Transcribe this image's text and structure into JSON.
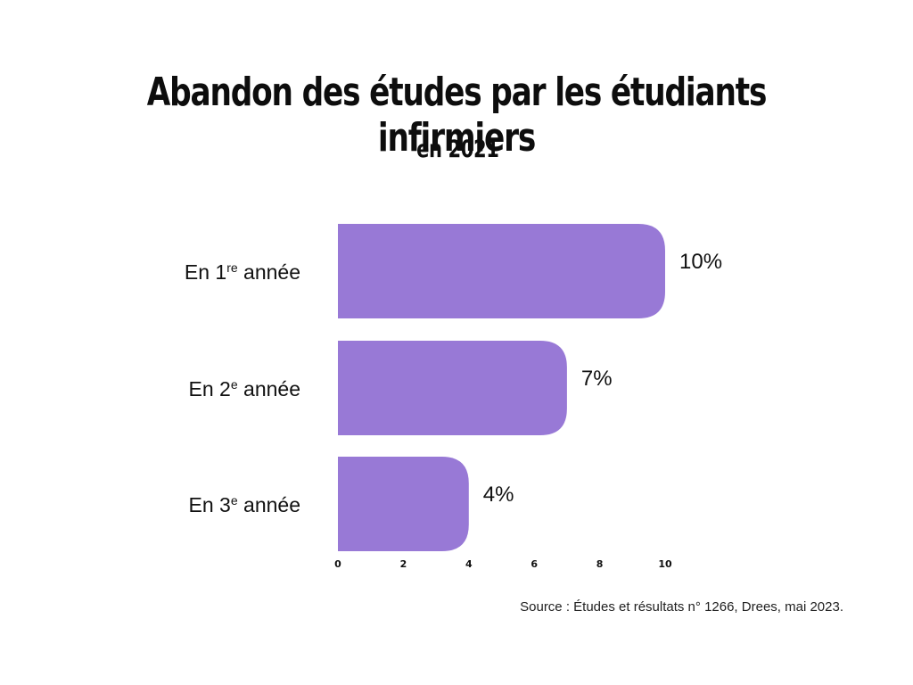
{
  "chart_data": {
    "type": "bar",
    "orientation": "horizontal",
    "title": "Abandon des études par les étudiants infirmiers",
    "subtitle": "en 2021",
    "categories": [
      {
        "prefix": "En ",
        "num": "1",
        "sup": "re",
        "suffix": " année"
      },
      {
        "prefix": "En ",
        "num": "2",
        "sup": "e",
        "suffix": " année"
      },
      {
        "prefix": "En ",
        "num": "3",
        "sup": "e",
        "suffix": " année"
      }
    ],
    "values": [
      10,
      7,
      4
    ],
    "value_labels": [
      "10%",
      "7%",
      "4%"
    ],
    "xlim": [
      0,
      10
    ],
    "xticks": [
      "0",
      "2",
      "4",
      "6",
      "8",
      "10"
    ],
    "bar_color": "#9879d6",
    "grid": false,
    "legend": "none"
  },
  "source": "Source : Études et résultats n° 1266, Drees, mai 2023."
}
